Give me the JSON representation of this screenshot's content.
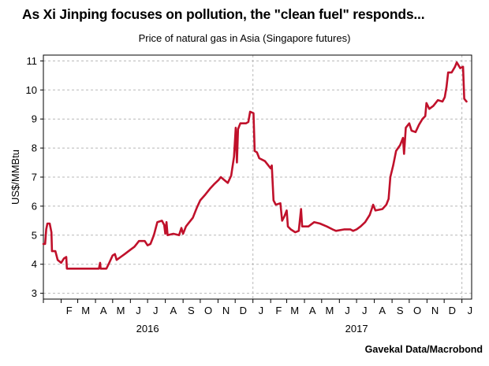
{
  "title": "As Xi Jinping focuses on pollution, the \"clean fuel\" responds...",
  "source": "Gavekal Data/Macrobond",
  "chart_data": {
    "type": "line",
    "title": "Price of natural gas in Asia (Singapore futures)",
    "xlabel": "",
    "ylabel": "US$/MMBtu",
    "ylim": [
      2.8,
      11.2
    ],
    "xlim": [
      "2016-01-01",
      "2018-01-18"
    ],
    "yticks": [
      3,
      4,
      5,
      6,
      7,
      8,
      9,
      10,
      11
    ],
    "xticks": [
      {
        "label": "F",
        "date": "2016-02-15"
      },
      {
        "label": "M",
        "date": "2016-03-15"
      },
      {
        "label": "A",
        "date": "2016-04-15"
      },
      {
        "label": "M",
        "date": "2016-05-15"
      },
      {
        "label": "J",
        "date": "2016-06-15"
      },
      {
        "label": "J",
        "date": "2016-07-15"
      },
      {
        "label": "A",
        "date": "2016-08-15"
      },
      {
        "label": "S",
        "date": "2016-09-15"
      },
      {
        "label": "O",
        "date": "2016-10-15"
      },
      {
        "label": "N",
        "date": "2016-11-15"
      },
      {
        "label": "D",
        "date": "2016-12-15"
      },
      {
        "label": "J",
        "date": "2017-01-15"
      },
      {
        "label": "F",
        "date": "2017-02-15"
      },
      {
        "label": "M",
        "date": "2017-03-15"
      },
      {
        "label": "A",
        "date": "2017-04-15"
      },
      {
        "label": "M",
        "date": "2017-05-15"
      },
      {
        "label": "J",
        "date": "2017-06-15"
      },
      {
        "label": "J",
        "date": "2017-07-15"
      },
      {
        "label": "A",
        "date": "2017-08-15"
      },
      {
        "label": "S",
        "date": "2017-09-15"
      },
      {
        "label": "O",
        "date": "2017-10-15"
      },
      {
        "label": "N",
        "date": "2017-11-15"
      },
      {
        "label": "D",
        "date": "2017-12-15"
      },
      {
        "label": "J",
        "date": "2018-01-15"
      }
    ],
    "year_labels": [
      {
        "label": "2016",
        "date": "2016-07-01"
      },
      {
        "label": "2017",
        "date": "2017-07-01"
      }
    ],
    "vgrid_dates": [
      "2017-01-01",
      "2018-01-01"
    ],
    "grid": true,
    "series": [
      {
        "color": "#c0112b",
        "points": [
          [
            "2016-01-01",
            4.7
          ],
          [
            "2016-01-04",
            4.7
          ],
          [
            "2016-01-06",
            5.2
          ],
          [
            "2016-01-08",
            5.4
          ],
          [
            "2016-01-12",
            5.4
          ],
          [
            "2016-01-15",
            5.1
          ],
          [
            "2016-01-16",
            4.45
          ],
          [
            "2016-01-22",
            4.45
          ],
          [
            "2016-01-26",
            4.15
          ],
          [
            "2016-02-01",
            4.05
          ],
          [
            "2016-02-06",
            4.2
          ],
          [
            "2016-02-10",
            4.25
          ],
          [
            "2016-02-11",
            3.85
          ],
          [
            "2016-03-10",
            3.85
          ],
          [
            "2016-03-20",
            3.85
          ],
          [
            "2016-04-01",
            3.85
          ],
          [
            "2016-04-07",
            3.85
          ],
          [
            "2016-04-09",
            4.05
          ],
          [
            "2016-04-10",
            3.85
          ],
          [
            "2016-04-20",
            3.85
          ],
          [
            "2016-04-25",
            4.05
          ],
          [
            "2016-05-01",
            4.3
          ],
          [
            "2016-05-05",
            4.35
          ],
          [
            "2016-05-08",
            4.15
          ],
          [
            "2016-05-15",
            4.25
          ],
          [
            "2016-05-22",
            4.35
          ],
          [
            "2016-06-01",
            4.5
          ],
          [
            "2016-06-08",
            4.6
          ],
          [
            "2016-06-12",
            4.7
          ],
          [
            "2016-06-16",
            4.8
          ],
          [
            "2016-06-26",
            4.8
          ],
          [
            "2016-07-01",
            4.65
          ],
          [
            "2016-07-06",
            4.7
          ],
          [
            "2016-07-12",
            5.0
          ],
          [
            "2016-07-18",
            5.45
          ],
          [
            "2016-07-26",
            5.5
          ],
          [
            "2016-07-30",
            5.35
          ],
          [
            "2016-08-01",
            5.05
          ],
          [
            "2016-08-03",
            5.45
          ],
          [
            "2016-08-05",
            5.0
          ],
          [
            "2016-08-15",
            5.05
          ],
          [
            "2016-08-25",
            5.0
          ],
          [
            "2016-08-29",
            5.25
          ],
          [
            "2016-09-01",
            5.05
          ],
          [
            "2016-09-06",
            5.3
          ],
          [
            "2016-09-12",
            5.45
          ],
          [
            "2016-09-18",
            5.6
          ],
          [
            "2016-09-25",
            5.95
          ],
          [
            "2016-10-01",
            6.2
          ],
          [
            "2016-10-10",
            6.4
          ],
          [
            "2016-10-18",
            6.6
          ],
          [
            "2016-10-25",
            6.75
          ],
          [
            "2016-11-02",
            6.9
          ],
          [
            "2016-11-06",
            7.0
          ],
          [
            "2016-11-12",
            6.9
          ],
          [
            "2016-11-18",
            6.8
          ],
          [
            "2016-11-24",
            7.05
          ],
          [
            "2016-11-29",
            7.7
          ],
          [
            "2016-12-02",
            8.7
          ],
          [
            "2016-12-04",
            7.5
          ],
          [
            "2016-12-06",
            8.65
          ],
          [
            "2016-12-10",
            8.85
          ],
          [
            "2016-12-20",
            8.85
          ],
          [
            "2016-12-24",
            8.9
          ],
          [
            "2016-12-27",
            9.25
          ],
          [
            "2017-01-02",
            9.2
          ],
          [
            "2017-01-04",
            7.9
          ],
          [
            "2017-01-08",
            7.85
          ],
          [
            "2017-01-12",
            7.65
          ],
          [
            "2017-01-22",
            7.55
          ],
          [
            "2017-02-01",
            7.3
          ],
          [
            "2017-02-03",
            7.4
          ],
          [
            "2017-02-06",
            6.2
          ],
          [
            "2017-02-10",
            6.05
          ],
          [
            "2017-02-18",
            6.1
          ],
          [
            "2017-02-21",
            5.5
          ],
          [
            "2017-02-25",
            5.65
          ],
          [
            "2017-03-01",
            5.85
          ],
          [
            "2017-03-03",
            5.3
          ],
          [
            "2017-03-08",
            5.2
          ],
          [
            "2017-03-16",
            5.1
          ],
          [
            "2017-03-22",
            5.15
          ],
          [
            "2017-03-26",
            5.9
          ],
          [
            "2017-03-28",
            5.3
          ],
          [
            "2017-04-08",
            5.3
          ],
          [
            "2017-04-18",
            5.45
          ],
          [
            "2017-04-28",
            5.4
          ],
          [
            "2017-05-10",
            5.3
          ],
          [
            "2017-05-20",
            5.2
          ],
          [
            "2017-05-26",
            5.15
          ],
          [
            "2017-06-10",
            5.2
          ],
          [
            "2017-06-20",
            5.2
          ],
          [
            "2017-06-25",
            5.15
          ],
          [
            "2017-07-01",
            5.2
          ],
          [
            "2017-07-08",
            5.3
          ],
          [
            "2017-07-16",
            5.45
          ],
          [
            "2017-07-24",
            5.7
          ],
          [
            "2017-07-30",
            6.05
          ],
          [
            "2017-08-03",
            5.85
          ],
          [
            "2017-08-15",
            5.9
          ],
          [
            "2017-08-22",
            6.05
          ],
          [
            "2017-08-26",
            6.25
          ],
          [
            "2017-08-29",
            7.0
          ],
          [
            "2017-09-03",
            7.4
          ],
          [
            "2017-09-08",
            7.9
          ],
          [
            "2017-09-15",
            8.1
          ],
          [
            "2017-09-20",
            8.35
          ],
          [
            "2017-09-22",
            7.8
          ],
          [
            "2017-09-25",
            8.7
          ],
          [
            "2017-10-01",
            8.85
          ],
          [
            "2017-10-05",
            8.6
          ],
          [
            "2017-10-12",
            8.55
          ],
          [
            "2017-10-18",
            8.8
          ],
          [
            "2017-10-24",
            9.0
          ],
          [
            "2017-10-29",
            9.1
          ],
          [
            "2017-10-31",
            9.55
          ],
          [
            "2017-11-05",
            9.35
          ],
          [
            "2017-11-12",
            9.45
          ],
          [
            "2017-11-20",
            9.65
          ],
          [
            "2017-11-28",
            9.6
          ],
          [
            "2017-12-02",
            9.75
          ],
          [
            "2017-12-05",
            10.1
          ],
          [
            "2017-12-08",
            10.6
          ],
          [
            "2017-12-14",
            10.6
          ],
          [
            "2017-12-20",
            10.8
          ],
          [
            "2017-12-23",
            10.95
          ],
          [
            "2017-12-29",
            10.75
          ],
          [
            "2018-01-03",
            10.8
          ],
          [
            "2018-01-05",
            9.7
          ],
          [
            "2018-01-09",
            9.6
          ]
        ]
      }
    ]
  }
}
